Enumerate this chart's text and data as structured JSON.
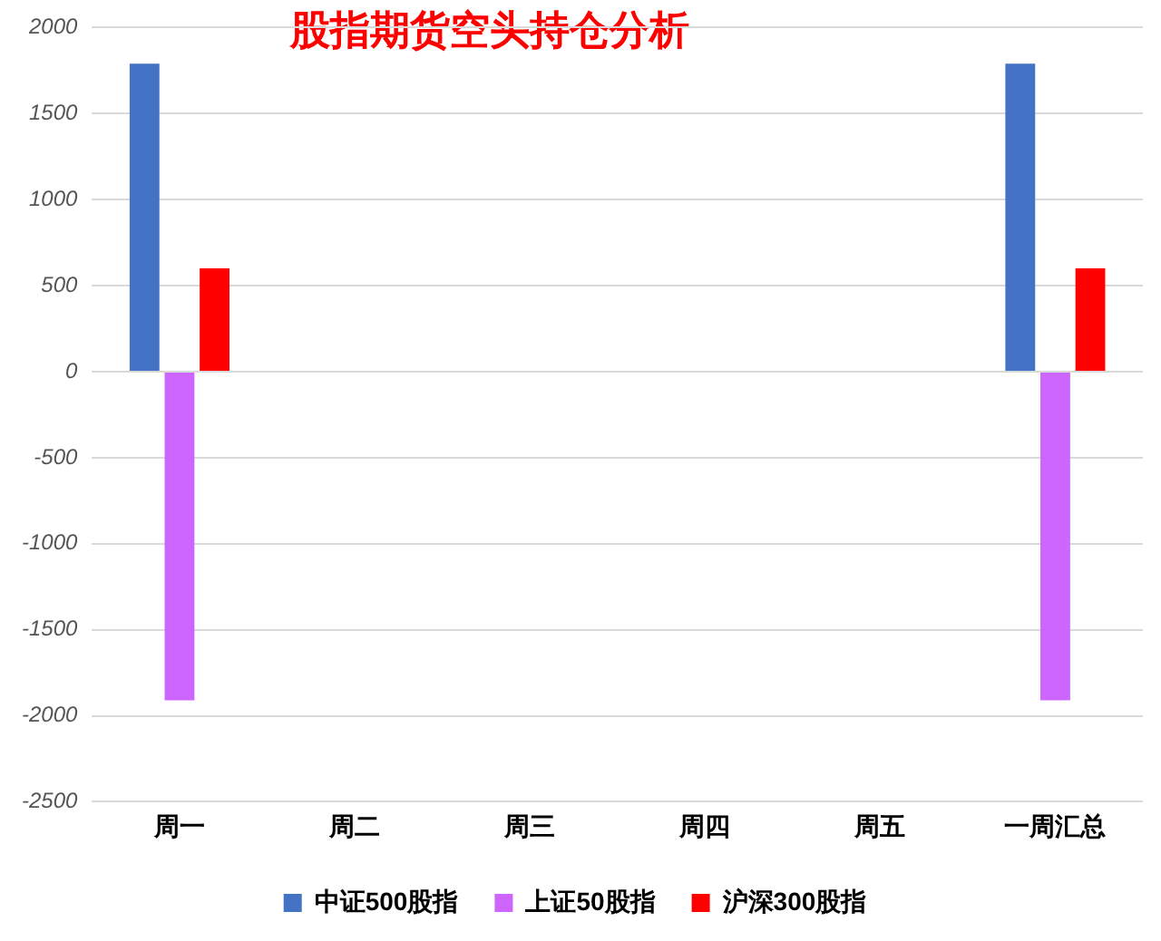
{
  "chart_data": {
    "type": "bar",
    "title": "股指期货空头持仓分析",
    "categories": [
      "周一",
      "周二",
      "周三",
      "周四",
      "周五",
      "一周汇总"
    ],
    "series": [
      {
        "name": "中证500股指",
        "color": "#4472c4",
        "values": [
          1790,
          null,
          null,
          null,
          null,
          1790
        ]
      },
      {
        "name": "上证50股指",
        "color": "#cc66ff",
        "values": [
          -1910,
          null,
          null,
          null,
          null,
          -1910
        ]
      },
      {
        "name": "沪深300股指",
        "color": "#ff0000",
        "values": [
          600,
          null,
          null,
          null,
          null,
          600
        ]
      }
    ],
    "ylim": [
      -2500,
      2000
    ],
    "yticks": [
      -2500,
      -2000,
      -1500,
      -1000,
      -500,
      0,
      500,
      1000,
      1500,
      2000
    ],
    "grid": "y",
    "legend": "bottom"
  }
}
